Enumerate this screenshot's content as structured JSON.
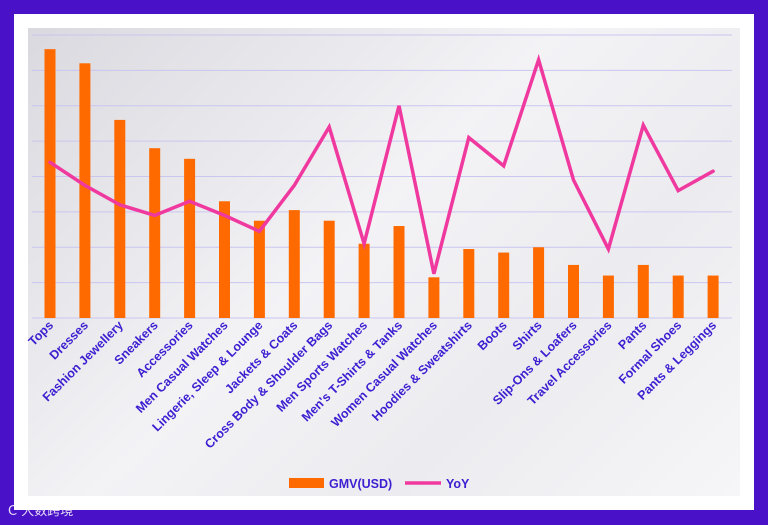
{
  "chart_data": {
    "type": "bar+line",
    "categories": [
      "Tops",
      "Dresses",
      "Fashion Jewellery",
      "Sneakers",
      "Accessories",
      "Men Casual Watches",
      "Lingerie, Sleep & Lounge",
      "Jackets & Coats",
      "Cross Body & Shoulder Bags",
      "Men Sports Watches",
      "Men's T-Shirts & Tanks",
      "Women Casual Watches",
      "Hoodies & Sweatshirts",
      "Boots",
      "Shirts",
      "Slip-Ons & Loafers",
      "Travel Accessories",
      "Pants",
      "Formal Shoes",
      "Pants & Leggings"
    ],
    "series": [
      {
        "name": "GMV(USD)",
        "type": "bar",
        "color": "#ff6a00",
        "values": [
          7.6,
          7.2,
          5.6,
          4.8,
          4.5,
          3.3,
          2.75,
          3.05,
          2.75,
          2.1,
          2.6,
          1.15,
          1.95,
          1.85,
          2.0,
          1.5,
          1.2,
          1.5,
          1.2,
          1.2
        ]
      },
      {
        "name": "YoY",
        "type": "line",
        "color": "#f0399f",
        "values": [
          4.4,
          3.75,
          3.2,
          2.9,
          3.3,
          2.9,
          2.45,
          3.75,
          5.4,
          2.1,
          6.0,
          1.25,
          5.1,
          4.3,
          7.3,
          3.9,
          1.95,
          5.45,
          3.6,
          4.15
        ]
      }
    ],
    "ylim": [
      0,
      8
    ],
    "grid": true,
    "y_tick_labels_shown": false,
    "legend_position": "bottom-center",
    "label_color": "#3b1fd1"
  },
  "watermark": "C 大数跨境"
}
